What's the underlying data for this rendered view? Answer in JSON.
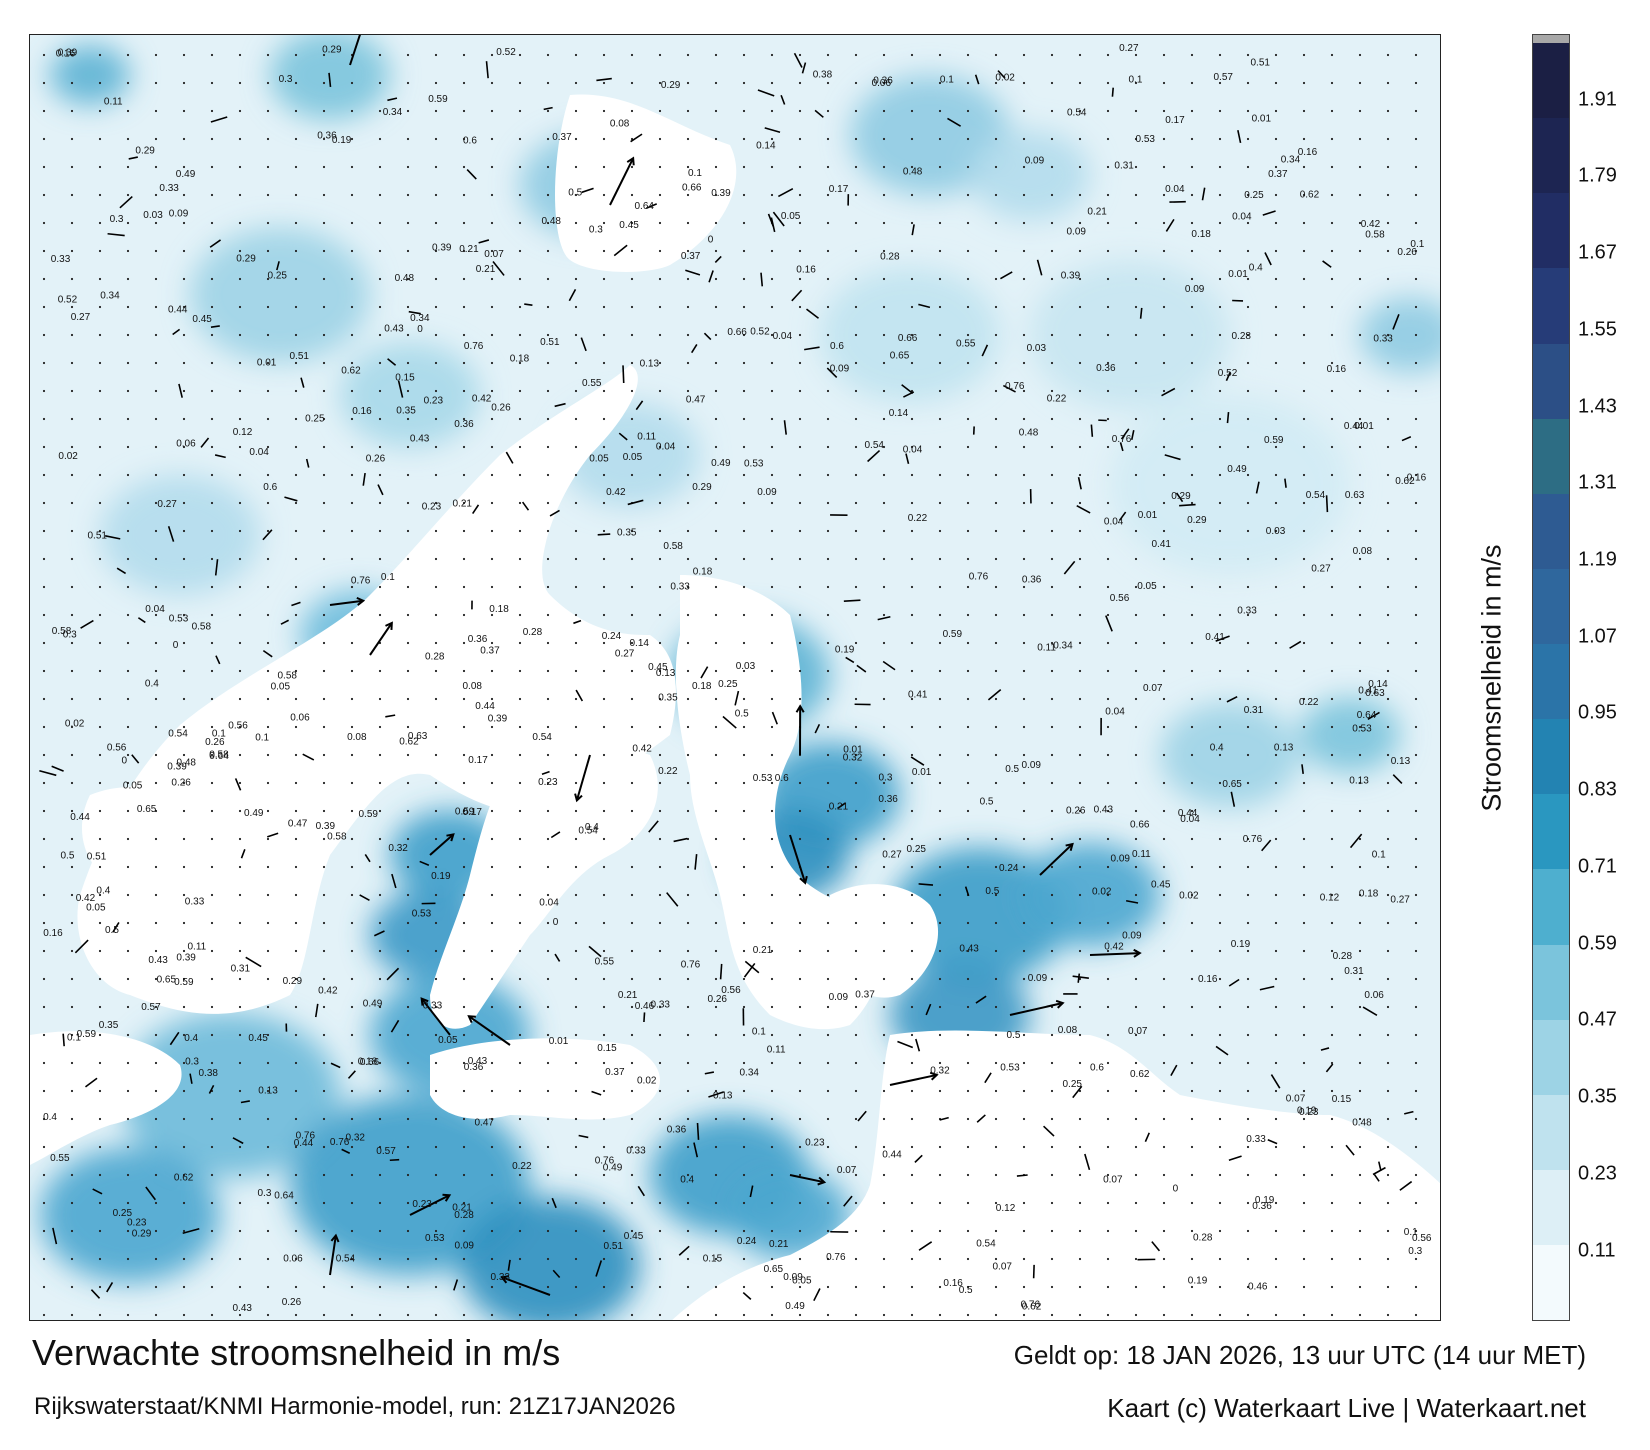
{
  "title": "Verwachte stroomsnelheid in m/s",
  "subtitle": "Rijkswaterstaat/KNMI Harmonie-model, run: 21Z17JAN2026",
  "valid_time": "Geldt op: 18 JAN 2026, 13 uur UTC (14 uur MET)",
  "credit": "Kaart (c) Waterkaart Live | Waterkaart.net",
  "colorbar": {
    "label": "Stroomsnelheid in m/s",
    "ticks": [
      "0.11",
      "0.23",
      "0.35",
      "0.47",
      "0.59",
      "0.71",
      "0.83",
      "0.95",
      "1.07",
      "1.19",
      "1.31",
      "1.43",
      "1.55",
      "1.67",
      "1.79",
      "1.91"
    ],
    "tick_values": [
      0.11,
      0.23,
      0.35,
      0.47,
      0.59,
      0.71,
      0.83,
      0.95,
      1.07,
      1.19,
      1.31,
      1.43,
      1.55,
      1.67,
      1.79,
      1.91
    ],
    "min": 0.0,
    "max": 2.0,
    "colors": [
      "#f3fafd",
      "#ddeff6",
      "#bfe2ee",
      "#9dd3e5",
      "#7bc4dc",
      "#4eafcf",
      "#2a97c0",
      "#2383b2",
      "#2b74a8",
      "#2f679d",
      "#2e5b92",
      "#2d6d84",
      "#2c4f86",
      "#263c78",
      "#212d64",
      "#1d2552",
      "#1b1f44"
    ],
    "top_cap_color": "#a8a8a8"
  },
  "map": {
    "land_color": "#ffffff",
    "water_low_color": "#e3f2f8",
    "water_high_color": "#1f7db0",
    "arrow_color": "#000000",
    "value_labels": [
      {
        "t": "0.07",
        "v": 0.07
      },
      {
        "t": "0.21",
        "v": 0.21
      },
      {
        "t": "0.18",
        "v": 0.18
      },
      {
        "t": "0.15",
        "v": 0.15
      },
      {
        "t": "0.17",
        "v": 0.17
      },
      {
        "t": "0.12",
        "v": 0.12
      },
      {
        "t": "0.11",
        "v": 0.11
      },
      {
        "t": "0.13",
        "v": 0.13
      },
      {
        "t": "0.08",
        "v": 0.08
      },
      {
        "t": "0.09",
        "v": 0.09
      },
      {
        "t": "0.14",
        "v": 0.14
      },
      {
        "t": "0.16",
        "v": 0.16
      },
      {
        "t": "0.03",
        "v": 0.03
      },
      {
        "t": "0.04",
        "v": 0.04
      },
      {
        "t": "0.06",
        "v": 0.06
      },
      {
        "t": "0.05",
        "v": 0.05
      },
      {
        "t": "0.01",
        "v": 0.01
      },
      {
        "t": "0.02",
        "v": 0.02
      },
      {
        "t": "0.19",
        "v": 0.19
      },
      {
        "t": "0.1",
        "v": 0.1
      },
      {
        "t": "0.22",
        "v": 0.22
      },
      {
        "t": "0.23",
        "v": 0.23
      },
      {
        "t": "0.24",
        "v": 0.24
      },
      {
        "t": "0.25",
        "v": 0.25
      },
      {
        "t": "0.26",
        "v": 0.26
      },
      {
        "t": "0.27",
        "v": 0.27
      },
      {
        "t": "0.28",
        "v": 0.28
      },
      {
        "t": "0.29",
        "v": 0.29
      },
      {
        "t": "0.3",
        "v": 0.3
      },
      {
        "t": "0.31",
        "v": 0.31
      },
      {
        "t": "0.32",
        "v": 0.32
      },
      {
        "t": "0.33",
        "v": 0.33
      },
      {
        "t": "0.34",
        "v": 0.34
      },
      {
        "t": "0.35",
        "v": 0.35
      },
      {
        "t": "0.36",
        "v": 0.36
      },
      {
        "t": "0.37",
        "v": 0.37
      },
      {
        "t": "0.38",
        "v": 0.38
      },
      {
        "t": "0.39",
        "v": 0.39
      },
      {
        "t": "0.4",
        "v": 0.4
      },
      {
        "t": "0.41",
        "v": 0.41
      },
      {
        "t": "0.42",
        "v": 0.42
      },
      {
        "t": "0.43",
        "v": 0.43
      },
      {
        "t": "0.44",
        "v": 0.44
      },
      {
        "t": "0.45",
        "v": 0.45
      },
      {
        "t": "0.46",
        "v": 0.46
      },
      {
        "t": "0.47",
        "v": 0.47
      },
      {
        "t": "0.48",
        "v": 0.48
      },
      {
        "t": "0.49",
        "v": 0.49
      },
      {
        "t": "0.5",
        "v": 0.5
      },
      {
        "t": "0.51",
        "v": 0.51
      },
      {
        "t": "0.52",
        "v": 0.52
      },
      {
        "t": "0.53",
        "v": 0.53
      },
      {
        "t": "0.54",
        "v": 0.54
      },
      {
        "t": "0.55",
        "v": 0.55
      },
      {
        "t": "0.56",
        "v": 0.56
      },
      {
        "t": "0.57",
        "v": 0.57
      },
      {
        "t": "0.58",
        "v": 0.58
      },
      {
        "t": "0.59",
        "v": 0.59
      },
      {
        "t": "0.6",
        "v": 0.6
      },
      {
        "t": "0.62",
        "v": 0.62
      },
      {
        "t": "0.63",
        "v": 0.63
      },
      {
        "t": "0.64",
        "v": 0.64
      },
      {
        "t": "0.65",
        "v": 0.65
      },
      {
        "t": "0.66",
        "v": 0.66
      },
      {
        "t": "0.76",
        "v": 0.76
      },
      {
        "t": "0",
        "v": 0
      }
    ]
  }
}
